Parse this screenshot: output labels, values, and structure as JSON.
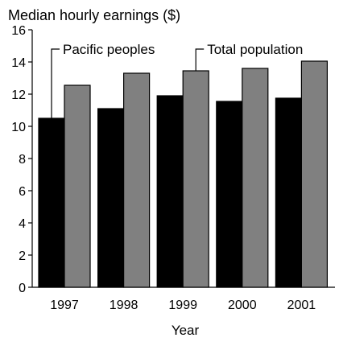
{
  "chart_data": {
    "type": "bar",
    "title": "",
    "ylabel": "Median hourly earnings ($)",
    "xlabel": "Year",
    "categories": [
      "1997",
      "1998",
      "1999",
      "2000",
      "2001"
    ],
    "series": [
      {
        "name": "Pacific peoples",
        "values": [
          10.5,
          11.1,
          11.9,
          11.55,
          11.75
        ],
        "color": "#000000"
      },
      {
        "name": "Total population",
        "values": [
          12.55,
          13.3,
          13.45,
          13.6,
          14.05
        ],
        "color": "#808080"
      }
    ],
    "ylim": [
      0,
      16
    ],
    "yticks": [
      0,
      2,
      4,
      6,
      8,
      10,
      12,
      14,
      16
    ],
    "grid": false,
    "legend": "callout labels above bars"
  }
}
